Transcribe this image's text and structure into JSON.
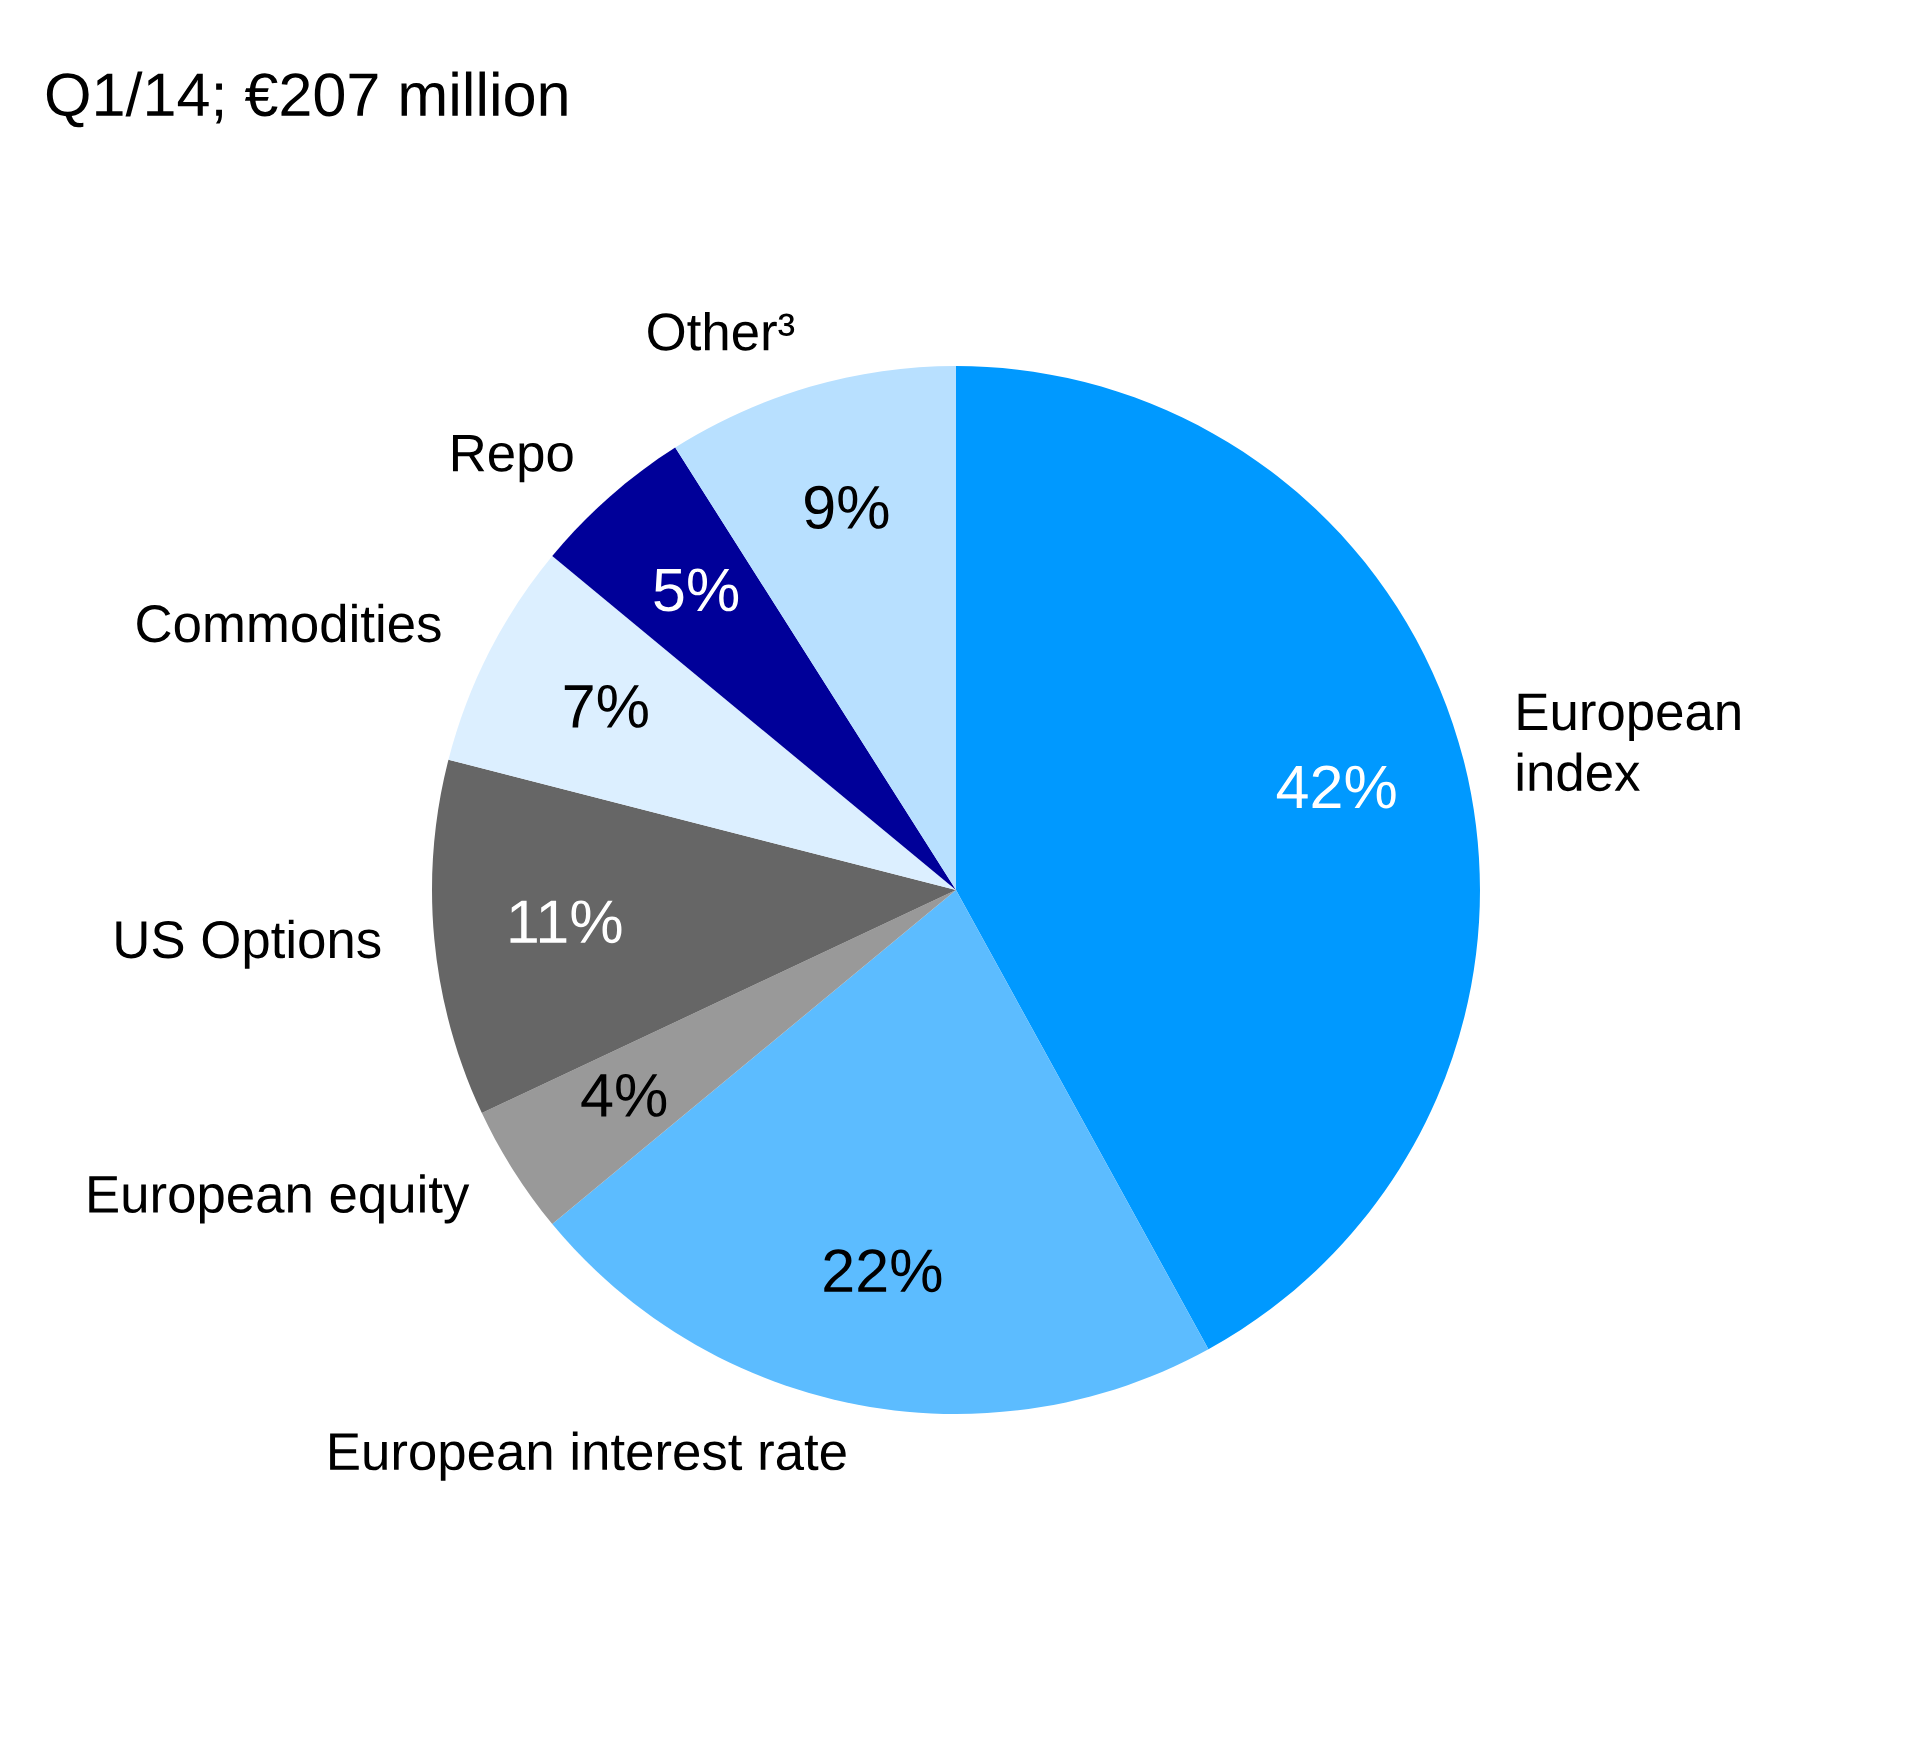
{
  "chart_data": {
    "type": "pie",
    "title": "Q1/14; €207 million",
    "categories": [
      "European\nindex",
      "European interest rate",
      "European equity",
      "US Options",
      "Commodities",
      "Repo",
      "Other³"
    ],
    "values": [
      42,
      22,
      4,
      11,
      7,
      5,
      9
    ],
    "value_labels": [
      "42%",
      "22%",
      "4%",
      "11%",
      "7%",
      "5%",
      "9%"
    ],
    "colors": [
      "#0099ff",
      "#5cbcff",
      "#999999",
      "#666666",
      "#dcefff",
      "#000099",
      "#b8e0ff"
    ],
    "legend": false
  }
}
